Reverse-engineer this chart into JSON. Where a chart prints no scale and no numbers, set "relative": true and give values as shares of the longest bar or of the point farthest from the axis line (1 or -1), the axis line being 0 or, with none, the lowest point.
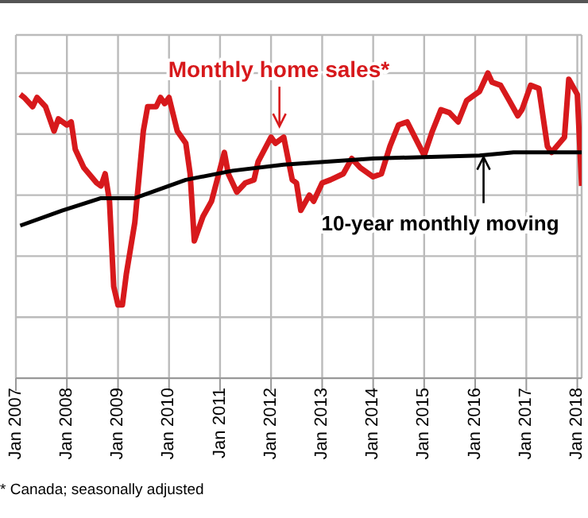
{
  "chart_data": {
    "type": "line",
    "relative": true,
    "x": [
      "2007-02",
      "2007-03",
      "2007-05",
      "2007-06",
      "2007-08",
      "2007-10",
      "2007-11",
      "2008-01",
      "2008-02",
      "2008-03",
      "2008-05",
      "2008-08",
      "2008-09",
      "2008-10",
      "2008-11",
      "2008-12",
      "2009-01",
      "2009-02",
      "2009-03",
      "2009-05",
      "2009-07",
      "2009-08",
      "2009-10",
      "2009-11",
      "2009-12",
      "2010-01",
      "2010-03",
      "2010-05",
      "2010-06",
      "2010-07",
      "2010-09",
      "2010-11",
      "2011-02",
      "2011-03",
      "2011-05",
      "2011-07",
      "2011-09",
      "2011-10",
      "2012-01",
      "2012-02",
      "2012-04",
      "2012-06",
      "2012-07",
      "2012-08",
      "2012-10",
      "2012-11",
      "2013-01",
      "2013-03",
      "2013-06",
      "2013-08",
      "2013-10",
      "2014-01",
      "2014-03",
      "2014-05",
      "2014-07",
      "2014-09",
      "2015-01",
      "2015-03",
      "2015-05",
      "2015-07",
      "2015-09",
      "2015-11",
      "2016-01",
      "2016-02",
      "2016-04",
      "2016-05",
      "2016-07",
      "2016-09",
      "2016-11",
      "2016-12",
      "2017-02",
      "2017-04",
      "2017-06",
      "2017-07",
      "2017-10",
      "2017-11",
      "2018-01",
      "2018-02"
    ],
    "series": [
      {
        "color": "#d7191c",
        "values": [
          0.93,
          0.92,
          0.89,
          0.92,
          0.89,
          0.81,
          0.85,
          0.83,
          0.84,
          0.75,
          0.69,
          0.64,
          0.63,
          0.67,
          0.58,
          0.3,
          0.24,
          0.24,
          0.34,
          0.51,
          0.81,
          0.89,
          0.89,
          0.92,
          0.9,
          0.92,
          0.81,
          0.77,
          0.67,
          0.45,
          0.53,
          0.58,
          0.74,
          0.67,
          0.61,
          0.64,
          0.65,
          0.71,
          0.79,
          0.77,
          0.79,
          0.65,
          0.64,
          0.55,
          0.6,
          0.58,
          0.64,
          0.65,
          0.67,
          0.72,
          0.69,
          0.66,
          0.67,
          0.76,
          0.83,
          0.84,
          0.73,
          0.81,
          0.88,
          0.87,
          0.84,
          0.91,
          0.93,
          0.94,
          1.0,
          0.97,
          0.96,
          0.91,
          0.86,
          0.88,
          0.96,
          0.95,
          0.76,
          0.74,
          0.79,
          0.98,
          0.93,
          0.63
        ]
      },
      {
        "color": "#000000",
        "x": [
          "2007-02",
          "2007-12",
          "2008-09",
          "2009-05",
          "2010-05",
          "2011-04",
          "2012-04",
          "2014-01",
          "2016-02",
          "2016-10",
          "2017-05",
          "2018-02"
        ],
        "values": [
          0.5,
          0.55,
          0.59,
          0.59,
          0.65,
          0.68,
          0.7,
          0.72,
          0.73,
          0.74,
          0.74,
          0.74
        ]
      }
    ],
    "xlim": [
      "2007-01",
      "2018-02"
    ],
    "xticks": [
      {
        "value": "2007-01",
        "label": "Jan 2007"
      },
      {
        "value": "2008-01",
        "label": "Jan 2008"
      },
      {
        "value": "2009-01",
        "label": "Jan 2009"
      },
      {
        "value": "2010-01",
        "label": "Jan 2010"
      },
      {
        "value": "2011-01",
        "label": "Jan 2011"
      },
      {
        "value": "2012-01",
        "label": "Jan 2012"
      },
      {
        "value": "2013-01",
        "label": "Jan 2013"
      },
      {
        "value": "2014-01",
        "label": "Jan 2014"
      },
      {
        "value": "2015-01",
        "label": "Jan 2015"
      },
      {
        "value": "2016-01",
        "label": "Jan 2016"
      },
      {
        "value": "2017-01",
        "label": "Jan 2017"
      },
      {
        "value": "2018-01",
        "label": "Jan 2018"
      }
    ],
    "grid": true,
    "legend": false,
    "marker": "none",
    "line_style": "solid",
    "annotations": [
      {
        "text": "Monthly home sales*",
        "x": "2012-03",
        "y": 0.82
      },
      {
        "text": "10-year monthly moving",
        "x": "2016-03",
        "y": 0.73
      },
      "* Canada; seasonally adjusted"
    ]
  }
}
